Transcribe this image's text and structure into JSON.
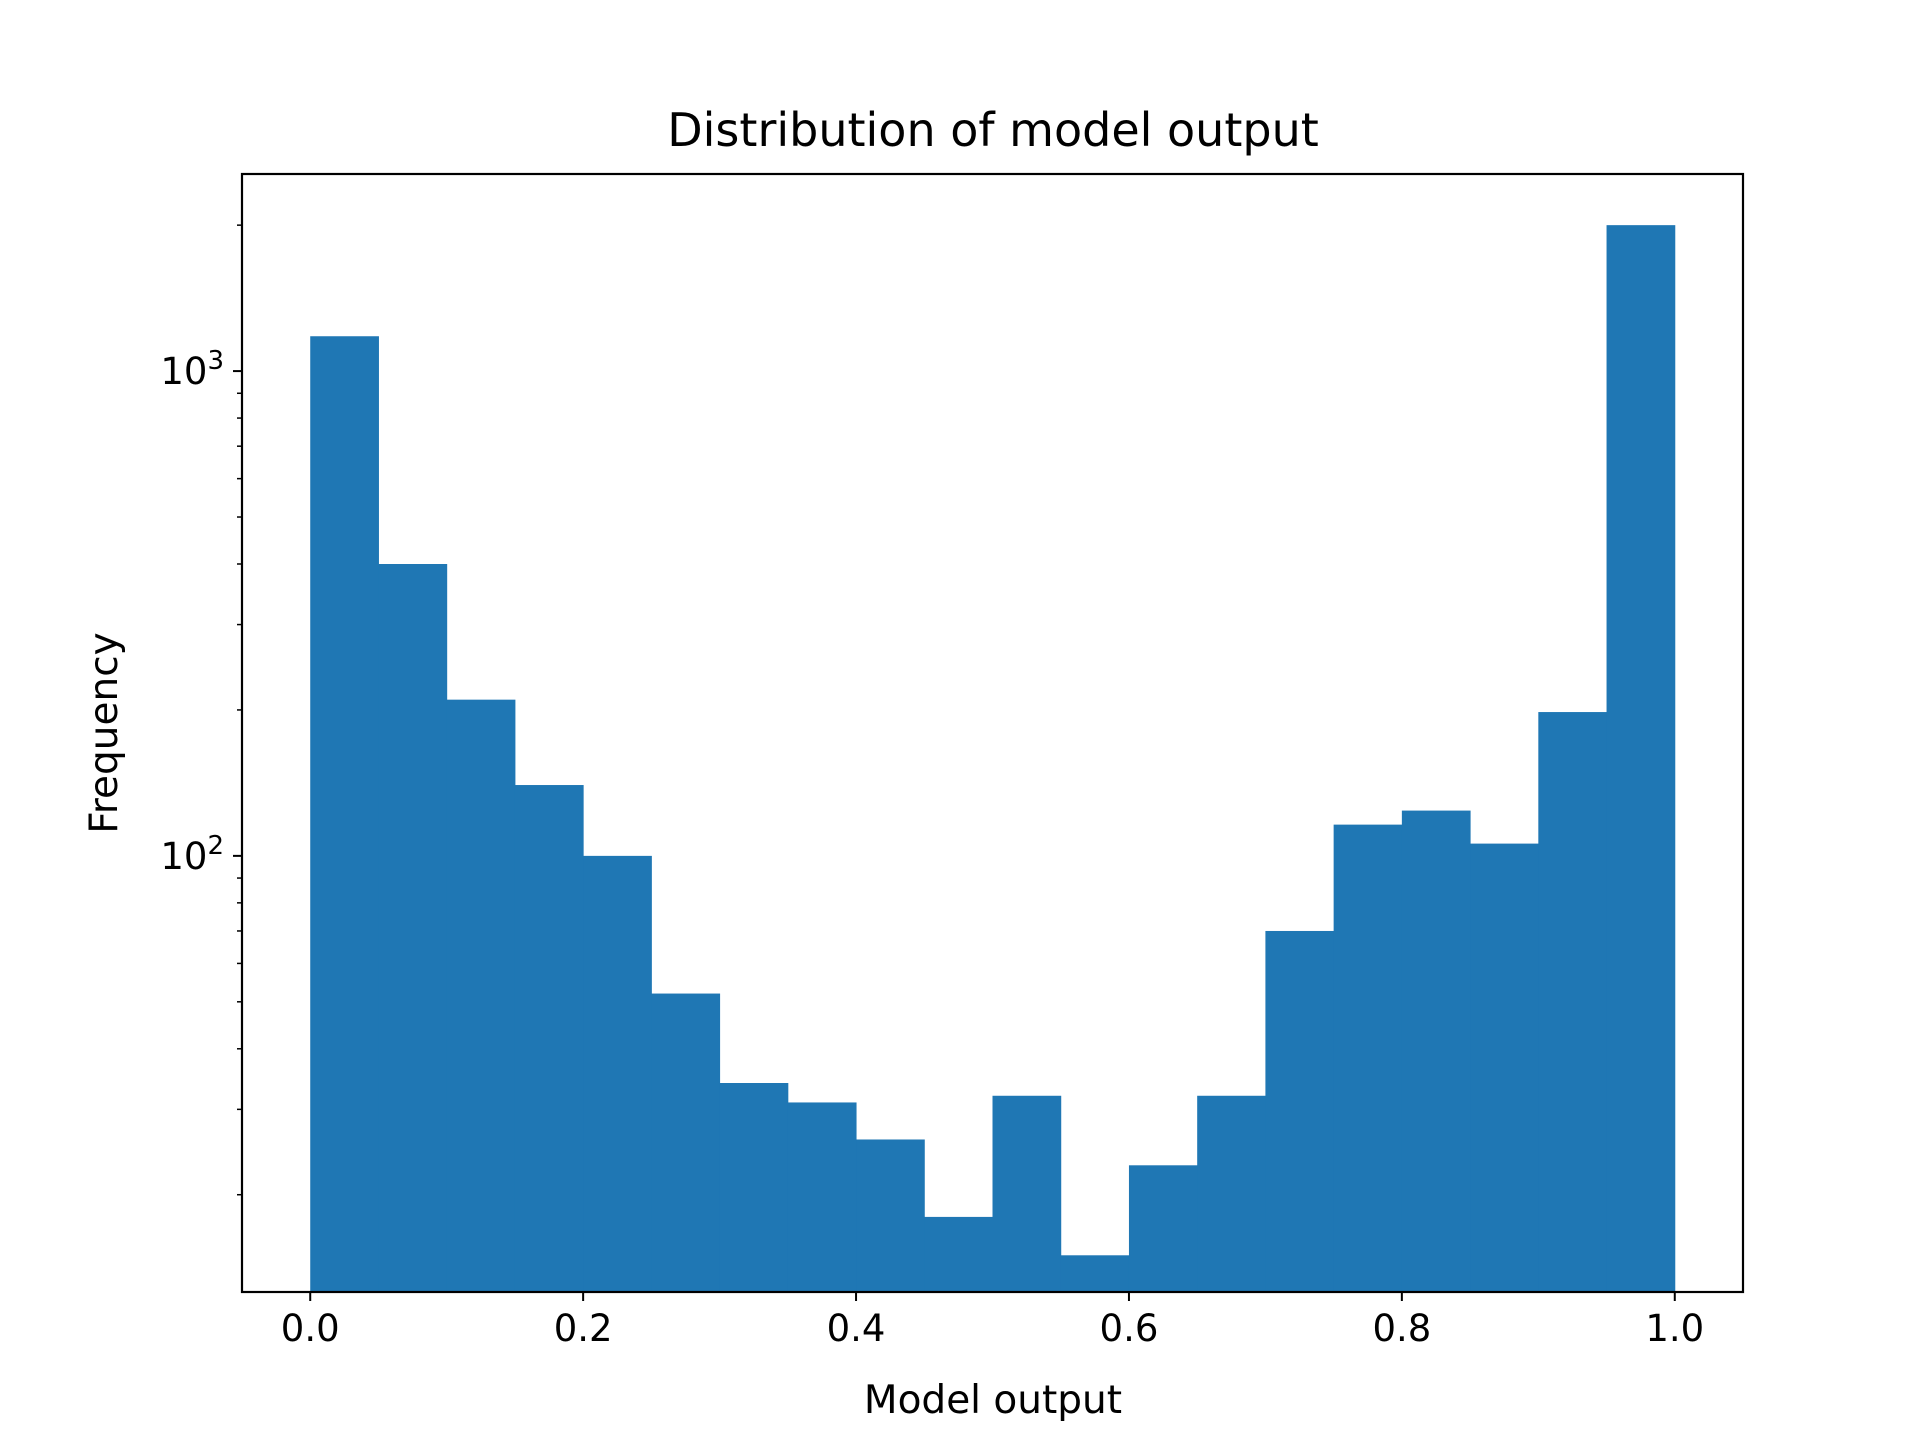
{
  "chart_data": {
    "type": "bar",
    "title": "Distribution of model output",
    "xlabel": "Model output",
    "ylabel": "Frequency",
    "yscale": "log",
    "xlim": [
      -0.05,
      1.05
    ],
    "ylim": [
      12.6,
      2550
    ],
    "grid": false,
    "bar_color": "#1f77b4",
    "bin_edges": [
      0.0,
      0.05,
      0.1,
      0.15,
      0.2,
      0.25,
      0.3,
      0.35,
      0.4,
      0.45,
      0.5,
      0.55,
      0.6,
      0.65,
      0.7,
      0.75,
      0.8,
      0.85,
      0.9,
      0.95,
      1.0
    ],
    "values": [
      1180,
      400,
      210,
      140,
      100,
      52,
      34,
      31,
      26,
      18,
      32,
      15,
      23,
      32,
      70,
      116,
      124,
      106,
      198,
      2000
    ],
    "x_ticks": [
      {
        "value": 0.0,
        "label": "0.0"
      },
      {
        "value": 0.2,
        "label": "0.2"
      },
      {
        "value": 0.4,
        "label": "0.4"
      },
      {
        "value": 0.6,
        "label": "0.6"
      },
      {
        "value": 0.8,
        "label": "0.8"
      },
      {
        "value": 1.0,
        "label": "1.0"
      }
    ],
    "y_major_ticks": [
      {
        "value": 100,
        "base": "10",
        "exp": "2"
      },
      {
        "value": 1000,
        "base": "10",
        "exp": "3"
      }
    ],
    "y_minor_ticks": [
      20,
      30,
      40,
      50,
      60,
      70,
      80,
      90,
      200,
      300,
      400,
      500,
      600,
      700,
      800,
      900,
      2000
    ]
  }
}
